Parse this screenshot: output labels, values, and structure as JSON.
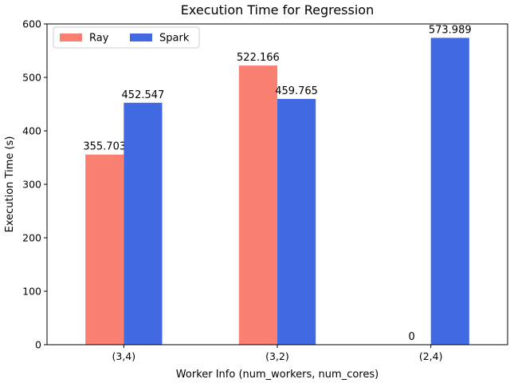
{
  "chart_data": {
    "type": "bar",
    "title": "Execution Time for Regression",
    "xlabel": "Worker Info (num_workers, num_cores)",
    "ylabel": "Execution Time (s)",
    "categories": [
      "(3,4)",
      "(3,2)",
      "(2,4)"
    ],
    "series": [
      {
        "name": "Ray",
        "values": [
          355.703,
          522.166,
          0
        ],
        "labels": [
          "355.703",
          "522.166",
          "0"
        ],
        "color": "#fa8072"
      },
      {
        "name": "Spark",
        "values": [
          452.547,
          459.765,
          573.989
        ],
        "labels": [
          "452.547",
          "459.765",
          "573.989"
        ],
        "color": "#4169e1"
      }
    ],
    "ylim": [
      0,
      600
    ],
    "yticks": [
      0,
      100,
      200,
      300,
      400,
      500,
      600
    ],
    "ytick_labels": [
      "0",
      "100",
      "200",
      "300",
      "400",
      "500",
      "600"
    ],
    "grid": false,
    "legend": {
      "placement": "top-left",
      "entries": [
        "Ray",
        "Spark"
      ]
    }
  }
}
